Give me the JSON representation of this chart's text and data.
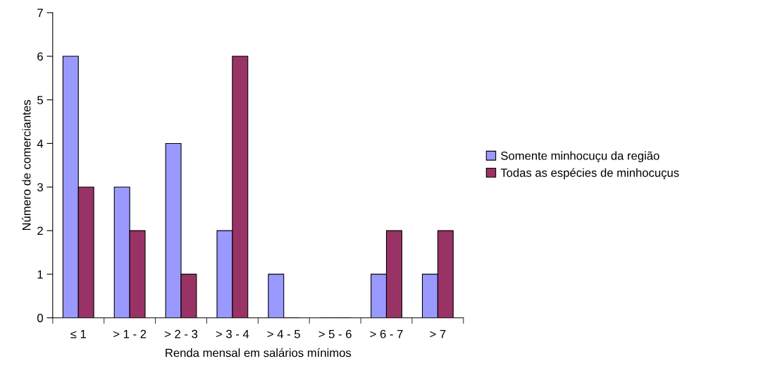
{
  "chart_data": {
    "type": "bar",
    "xlabel": "Renda mensal em salários mínimos",
    "ylabel": "Número de comerciantes",
    "categories": [
      "≤ 1",
      "> 1 - 2",
      "> 2 - 3",
      "> 3 - 4",
      "> 4 - 5",
      "> 5 - 6",
      "> 6 - 7",
      "> 7"
    ],
    "series": [
      {
        "name": "Somente minhocuçu da região",
        "color": "#9999ff",
        "values": [
          6,
          3,
          4,
          2,
          1,
          0,
          1,
          1
        ]
      },
      {
        "name": "Todas as espécies de minhocuçus",
        "color": "#993366",
        "values": [
          3,
          2,
          1,
          6,
          0,
          0,
          2,
          2
        ]
      }
    ],
    "ylim": [
      0,
      7
    ],
    "yticks": [
      0,
      1,
      2,
      3,
      4,
      5,
      6,
      7
    ],
    "grid": false,
    "legend": "right"
  }
}
